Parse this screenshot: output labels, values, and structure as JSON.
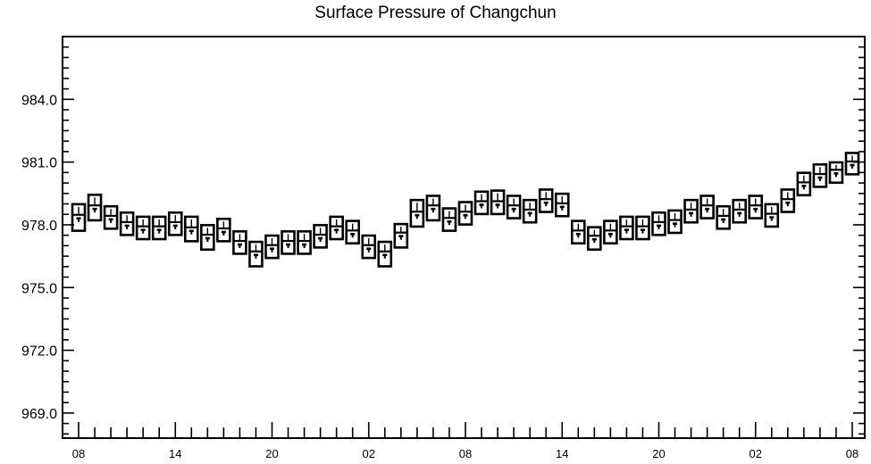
{
  "chart_data": {
    "type": "box",
    "title": "Surface Pressure of Changchun",
    "xlabel": "",
    "ylabel": "",
    "ylim": [
      967.8,
      987.0
    ],
    "y_ticks": [
      969.0,
      972.0,
      975.0,
      978.0,
      981.0,
      984.0
    ],
    "y_tick_labels": [
      "969.0",
      "972.0",
      "975.0",
      "978.0",
      "981.0",
      "984.0"
    ],
    "x_tick_labels": [
      "08",
      "14",
      "20",
      "02",
      "08",
      "14",
      "20",
      "02",
      "08"
    ],
    "x_tick_steps": [
      0,
      6,
      12,
      18,
      24,
      30,
      36,
      42,
      48
    ],
    "step_hours": 1,
    "grid": false,
    "series": [
      {
        "stat": "median",
        "values": [
          978.35,
          978.8,
          978.3,
          978.0,
          977.8,
          977.8,
          978.0,
          977.75,
          977.4,
          977.7,
          977.1,
          976.6,
          976.9,
          977.1,
          977.1,
          977.4,
          977.8,
          977.6,
          976.9,
          976.6,
          977.5,
          978.5,
          978.8,
          978.2,
          978.5,
          979.0,
          979.0,
          978.8,
          978.6,
          979.1,
          978.9,
          977.6,
          977.35,
          977.6,
          977.8,
          977.8,
          978.0,
          978.1,
          978.6,
          978.8,
          978.3,
          978.6,
          978.8,
          978.4,
          979.1,
          979.9,
          980.3,
          980.5,
          980.9
        ]
      },
      {
        "stat": "low",
        "values": [
          977.8,
          978.3,
          977.9,
          977.6,
          977.4,
          977.4,
          977.6,
          977.3,
          976.9,
          977.3,
          976.7,
          976.1,
          976.5,
          976.7,
          976.7,
          977.0,
          977.4,
          977.2,
          976.5,
          976.1,
          977.0,
          978.0,
          978.3,
          977.8,
          978.1,
          978.6,
          978.6,
          978.4,
          978.2,
          978.7,
          978.5,
          977.2,
          976.9,
          977.2,
          977.4,
          977.4,
          977.6,
          977.7,
          978.2,
          978.4,
          977.9,
          978.2,
          978.4,
          978.0,
          978.7,
          979.5,
          979.9,
          980.1,
          980.5
        ]
      },
      {
        "stat": "high",
        "values": [
          978.9,
          979.35,
          978.8,
          978.5,
          978.3,
          978.3,
          978.5,
          978.3,
          977.9,
          978.2,
          977.6,
          977.1,
          977.4,
          977.6,
          977.6,
          977.9,
          978.3,
          978.1,
          977.4,
          977.1,
          977.95,
          979.1,
          979.3,
          978.7,
          979.0,
          979.5,
          979.55,
          979.3,
          979.1,
          979.6,
          979.4,
          978.1,
          977.8,
          978.1,
          978.3,
          978.3,
          978.5,
          978.6,
          979.1,
          979.3,
          978.8,
          979.1,
          979.3,
          978.9,
          979.6,
          980.4,
          980.8,
          980.9,
          981.35
        ]
      }
    ]
  }
}
